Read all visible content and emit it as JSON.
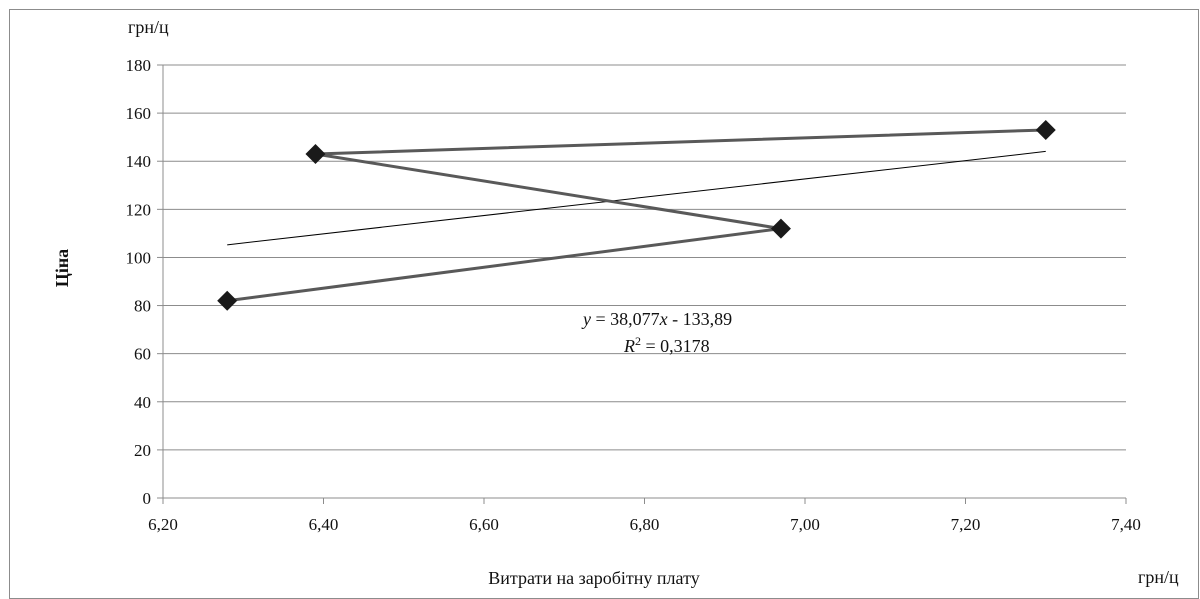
{
  "chart_data": {
    "type": "scatter",
    "title": "",
    "xlabel": "Витрати на заробітну плату",
    "ylabel": "Ціна",
    "x_unit": "грн/ц",
    "y_unit": "грн/ц",
    "xlim": [
      6.2,
      7.4
    ],
    "ylim": [
      0,
      180
    ],
    "x_ticks": [
      "6,20",
      "6,40",
      "6,60",
      "6,80",
      "7,00",
      "7,20",
      "7,40"
    ],
    "y_ticks": [
      "0",
      "20",
      "40",
      "60",
      "80",
      "100",
      "120",
      "140",
      "160",
      "180"
    ],
    "grid": "horizontal",
    "series": [
      {
        "points": [
          {
            "x": 6.28,
            "y": 82
          },
          {
            "x": 6.97,
            "y": 112
          },
          {
            "x": 6.39,
            "y": 143
          },
          {
            "x": 7.3,
            "y": 153
          }
        ],
        "color": "#595959",
        "marker": "diamond",
        "marker_color": "#1a1a1a"
      }
    ],
    "trendline": {
      "type": "linear",
      "slope": 38.077,
      "intercept": -133.89,
      "x_range": [
        6.28,
        7.3
      ],
      "equation_lhs": "y",
      "equation_rhs": " = 38,077",
      "equation_var": "x",
      "equation_tail": " - 133,89",
      "r2_lhs": "R",
      "r2_sup": "2",
      "r2_rhs": " = 0,3178",
      "color": "#000000"
    }
  }
}
